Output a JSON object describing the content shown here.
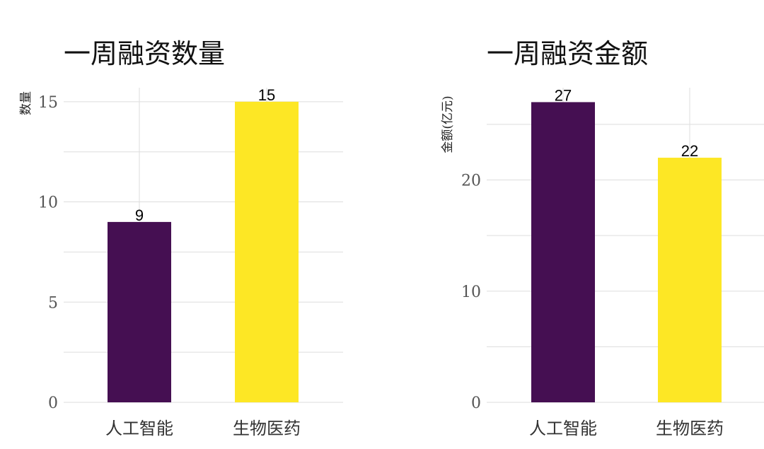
{
  "colors": {
    "ai": "#450f52",
    "bio": "#fde725",
    "grid": "#dddddd"
  },
  "chart_data": [
    {
      "type": "bar",
      "title": "一周融资数量",
      "ylabel": "数量",
      "xlabel": "",
      "categories": [
        "人工智能",
        "生物医药"
      ],
      "values": [
        9,
        15
      ],
      "data_labels": [
        "9",
        "15"
      ],
      "yticks": [
        0,
        5,
        10,
        15
      ],
      "ytick_labels": [
        "0",
        "5",
        "10",
        "15"
      ],
      "minor_grid": [
        2.5,
        7.5,
        12.5
      ],
      "ylim": [
        0,
        15.7
      ],
      "grid": true
    },
    {
      "type": "bar",
      "title": "一周融资金额",
      "ylabel": "金额(亿元)",
      "xlabel": "",
      "categories": [
        "人工智能",
        "生物医药"
      ],
      "values": [
        27,
        22
      ],
      "data_labels": [
        "27",
        "22"
      ],
      "yticks": [
        0,
        10,
        20
      ],
      "ytick_labels": [
        "0",
        "10",
        "20"
      ],
      "minor_grid": [
        5,
        15,
        25
      ],
      "ylim": [
        0,
        28.3
      ],
      "grid": true
    }
  ]
}
